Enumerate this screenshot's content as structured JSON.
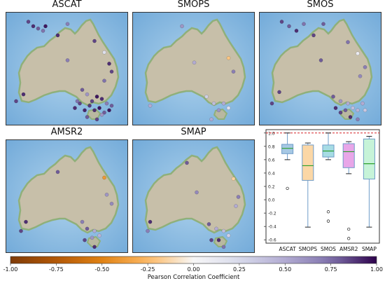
{
  "maps": [
    {
      "title": "ASCAT",
      "stations": [
        [
          0.18,
          0.08,
          0.85
        ],
        [
          0.22,
          0.12,
          0.9
        ],
        [
          0.26,
          0.14,
          0.8
        ],
        [
          0.3,
          0.16,
          0.75
        ],
        [
          0.32,
          0.12,
          0.95
        ],
        [
          0.42,
          0.2,
          0.9
        ],
        [
          0.5,
          0.1,
          0.7
        ],
        [
          0.72,
          0.25,
          0.85
        ],
        [
          0.8,
          0.35,
          0.2
        ],
        [
          0.5,
          0.42,
          0.7
        ],
        [
          0.84,
          0.45,
          0.9
        ],
        [
          0.86,
          0.52,
          0.85
        ],
        [
          0.8,
          0.6,
          0.75
        ],
        [
          0.14,
          0.72,
          0.9
        ],
        [
          0.08,
          0.78,
          0.85
        ],
        [
          0.62,
          0.68,
          0.8
        ],
        [
          0.66,
          0.72,
          0.6
        ],
        [
          0.74,
          0.74,
          0.95
        ],
        [
          0.78,
          0.76,
          0.9
        ],
        [
          0.7,
          0.78,
          0.85
        ],
        [
          0.82,
          0.8,
          0.7
        ],
        [
          0.86,
          0.82,
          0.8
        ],
        [
          0.76,
          0.84,
          0.95
        ],
        [
          0.68,
          0.82,
          0.88
        ],
        [
          0.72,
          0.86,
          0.9
        ],
        [
          0.64,
          0.86,
          0.92
        ],
        [
          0.8,
          0.88,
          0.8
        ],
        [
          0.6,
          0.8,
          0.85
        ],
        [
          0.56,
          0.84,
          0.9
        ],
        [
          0.84,
          0.86,
          0.95
        ],
        [
          0.78,
          0.9,
          0.6
        ],
        [
          0.74,
          0.94,
          0.85
        ],
        [
          0.58,
          0.78,
          0.75
        ],
        [
          0.66,
          0.92,
          0.8
        ]
      ]
    },
    {
      "title": "SMOPS",
      "stations": [
        [
          0.4,
          0.12,
          0.6
        ],
        [
          0.78,
          0.4,
          -0.2
        ],
        [
          0.5,
          0.44,
          0.5
        ],
        [
          0.82,
          0.52,
          0.7
        ],
        [
          0.6,
          0.74,
          0.3
        ],
        [
          0.66,
          0.8,
          0.4
        ],
        [
          0.74,
          0.8,
          0.5
        ],
        [
          0.78,
          0.84,
          0.2
        ],
        [
          0.7,
          0.86,
          0.6
        ],
        [
          0.14,
          0.82,
          0.5
        ],
        [
          0.64,
          0.94,
          0.5
        ]
      ]
    },
    {
      "title": "SMOS",
      "stations": [
        [
          0.18,
          0.08,
          0.85
        ],
        [
          0.24,
          0.12,
          0.8
        ],
        [
          0.3,
          0.16,
          0.9
        ],
        [
          0.36,
          0.1,
          0.75
        ],
        [
          0.44,
          0.2,
          0.85
        ],
        [
          0.52,
          0.1,
          0.8
        ],
        [
          0.72,
          0.26,
          0.75
        ],
        [
          0.8,
          0.36,
          0.1
        ],
        [
          0.5,
          0.42,
          0.8
        ],
        [
          0.86,
          0.48,
          0.7
        ],
        [
          0.82,
          0.56,
          0.65
        ],
        [
          0.16,
          0.7,
          0.85
        ],
        [
          0.1,
          0.8,
          0.85
        ],
        [
          0.6,
          0.74,
          0.8
        ],
        [
          0.66,
          0.78,
          0.6
        ],
        [
          0.72,
          0.8,
          0.5
        ],
        [
          0.76,
          0.84,
          0.4
        ],
        [
          0.8,
          0.86,
          0.45
        ],
        [
          0.84,
          0.8,
          0.5
        ],
        [
          0.86,
          0.86,
          0.35
        ],
        [
          0.7,
          0.86,
          0.8
        ],
        [
          0.62,
          0.84,
          0.9
        ],
        [
          0.66,
          0.88,
          0.85
        ],
        [
          0.74,
          0.92,
          0.9
        ],
        [
          0.8,
          0.94,
          0.7
        ]
      ]
    },
    {
      "title": "AMSR2",
      "stations": [
        [
          0.42,
          0.28,
          0.8
        ],
        [
          0.8,
          0.33,
          -0.4
        ],
        [
          0.82,
          0.48,
          0.6
        ],
        [
          0.86,
          0.56,
          0.65
        ],
        [
          0.16,
          0.72,
          0.9
        ],
        [
          0.12,
          0.8,
          0.85
        ],
        [
          0.62,
          0.72,
          0.7
        ],
        [
          0.66,
          0.78,
          0.8
        ],
        [
          0.72,
          0.8,
          0.5
        ],
        [
          0.76,
          0.84,
          0.45
        ],
        [
          0.7,
          0.86,
          0.6
        ],
        [
          0.64,
          0.88,
          0.85
        ],
        [
          0.72,
          0.94,
          0.9
        ]
      ]
    },
    {
      "title": "SMAP",
      "stations": [
        [
          0.44,
          0.2,
          0.8
        ],
        [
          0.82,
          0.34,
          -0.15
        ],
        [
          0.52,
          0.46,
          0.65
        ],
        [
          0.86,
          0.5,
          0.7
        ],
        [
          0.84,
          0.58,
          0.5
        ],
        [
          0.14,
          0.72,
          0.9
        ],
        [
          0.12,
          0.8,
          0.7
        ],
        [
          0.62,
          0.74,
          0.8
        ],
        [
          0.68,
          0.78,
          0.5
        ],
        [
          0.74,
          0.8,
          0.4
        ],
        [
          0.78,
          0.84,
          0.3
        ],
        [
          0.7,
          0.88,
          0.9
        ],
        [
          0.64,
          0.88,
          0.85
        ],
        [
          0.74,
          0.94,
          0.75
        ]
      ]
    }
  ],
  "chart_data": {
    "type": "box",
    "categories": [
      "ASCAT",
      "SMOPS",
      "SMOS",
      "AMSR2",
      "SMAP"
    ],
    "ylim": [
      -0.65,
      1.05
    ],
    "yticks": [
      "1.0",
      "0.8",
      "0.6",
      "0.4",
      "0.2",
      "0.0",
      "-0.2",
      "-0.4",
      "-0.6"
    ],
    "ytick_values": [
      1.0,
      0.8,
      0.6,
      0.4,
      0.2,
      0.0,
      -0.2,
      -0.4,
      -0.6
    ],
    "reference_line": 1.0,
    "boxes": [
      {
        "name": "ASCAT",
        "whislo": 0.6,
        "q1": 0.69,
        "med": 0.77,
        "q3": 0.83,
        "whishi": 1.0,
        "fliers": [
          0.17
        ],
        "color": "#a6c8e4"
      },
      {
        "name": "SMOPS",
        "whislo": -0.41,
        "q1": 0.29,
        "med": 0.51,
        "q3": 0.82,
        "whishi": 0.85,
        "fliers": [],
        "color": "#fbd7a6"
      },
      {
        "name": "SMOS",
        "whislo": 0.6,
        "q1": 0.64,
        "med": 0.73,
        "q3": 0.82,
        "whishi": 1.0,
        "fliers": [
          -0.18,
          -0.32
        ],
        "color": "#a6dce4"
      },
      {
        "name": "AMSR2",
        "whislo": 0.39,
        "q1": 0.48,
        "med": 0.72,
        "q3": 0.84,
        "whishi": 0.87,
        "fliers": [
          -0.44,
          -0.58
        ],
        "color": "#e8a6e8"
      },
      {
        "name": "SMAP",
        "whislo": -0.41,
        "q1": 0.31,
        "med": 0.54,
        "q3": 0.91,
        "whishi": 0.95,
        "fliers": [],
        "color": "#c6f3d8"
      }
    ],
    "colorbar": {
      "label": "Pearson Correlation Coefficient",
      "min": -1.0,
      "max": 1.0,
      "ticks": [
        "-1.00",
        "-0.75",
        "-0.50",
        "-0.25",
        "0.00",
        "0.25",
        "0.50",
        "0.75",
        "1.00"
      ],
      "tick_values": [
        -1.0,
        -0.75,
        -0.5,
        -0.25,
        0.0,
        0.25,
        0.5,
        0.75,
        1.0
      ]
    }
  }
}
